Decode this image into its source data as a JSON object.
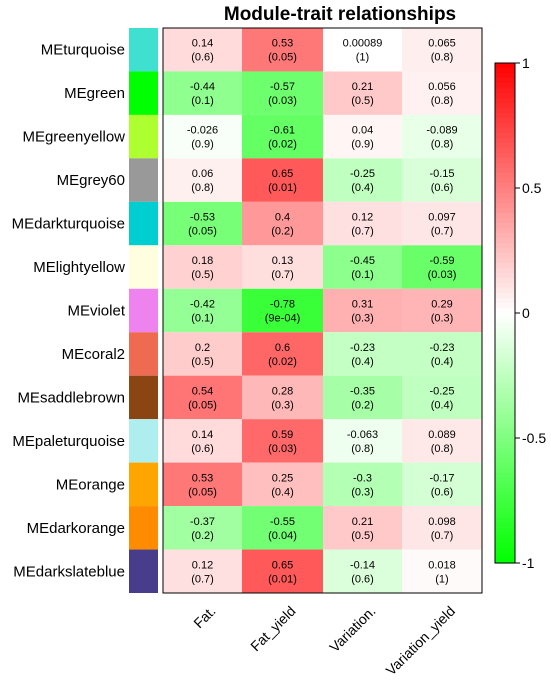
{
  "chart_data": {
    "type": "heatmap",
    "title": "Module-trait relationships",
    "rows": [
      "MEturquoise",
      "MEgreen",
      "MEgreenyellow",
      "MEgrey60",
      "MEdarkturquoise",
      "MElightyellow",
      "MEviolet",
      "MEcoral2",
      "MEsaddlebrown",
      "MEpaleturquoise",
      "MEorange",
      "MEdarkorange",
      "MEdarkslateblue"
    ],
    "row_colors": [
      "#40E0D0",
      "#00FF00",
      "#ADFF2F",
      "#999999",
      "#00CED1",
      "#FFFFE0",
      "#EE82EE",
      "#EE6A50",
      "#8B4513",
      "#AFEEEE",
      "#FFA500",
      "#FF8C00",
      "#483D8B"
    ],
    "columns": [
      "Fat.",
      "Fat_yield",
      "Variation.",
      "Variation_yield"
    ],
    "values": [
      [
        0.14,
        0.53,
        0.00089,
        0.065
      ],
      [
        -0.44,
        -0.57,
        0.21,
        0.056
      ],
      [
        -0.026,
        -0.61,
        0.04,
        -0.089
      ],
      [
        0.06,
        0.65,
        -0.25,
        -0.15
      ],
      [
        -0.53,
        0.4,
        0.12,
        0.097
      ],
      [
        0.18,
        0.13,
        -0.45,
        -0.59
      ],
      [
        -0.42,
        -0.78,
        0.31,
        0.29
      ],
      [
        0.2,
        0.6,
        -0.23,
        -0.23
      ],
      [
        0.54,
        0.28,
        -0.35,
        -0.25
      ],
      [
        0.14,
        0.59,
        -0.063,
        0.089
      ],
      [
        0.53,
        0.25,
        -0.3,
        -0.17
      ],
      [
        -0.37,
        -0.55,
        0.21,
        0.098
      ],
      [
        0.12,
        0.65,
        -0.14,
        0.018
      ]
    ],
    "value_labels": [
      [
        "0.14",
        "0.53",
        "0.00089",
        "0.065"
      ],
      [
        "-0.44",
        "-0.57",
        "0.21",
        "0.056"
      ],
      [
        "-0.026",
        "-0.61",
        "0.04",
        "-0.089"
      ],
      [
        "0.06",
        "0.65",
        "-0.25",
        "-0.15"
      ],
      [
        "-0.53",
        "0.4",
        "0.12",
        "0.097"
      ],
      [
        "0.18",
        "0.13",
        "-0.45",
        "-0.59"
      ],
      [
        "-0.42",
        "-0.78",
        "0.31",
        "0.29"
      ],
      [
        "0.2",
        "0.6",
        "-0.23",
        "-0.23"
      ],
      [
        "0.54",
        "0.28",
        "-0.35",
        "-0.25"
      ],
      [
        "0.14",
        "0.59",
        "-0.063",
        "0.089"
      ],
      [
        "0.53",
        "0.25",
        "-0.3",
        "-0.17"
      ],
      [
        "-0.37",
        "-0.55",
        "0.21",
        "0.098"
      ],
      [
        "0.12",
        "0.65",
        "-0.14",
        "0.018"
      ]
    ],
    "p_labels": [
      [
        "(0.6)",
        "(0.05)",
        "(1)",
        "(0.8)"
      ],
      [
        "(0.1)",
        "(0.03)",
        "(0.5)",
        "(0.8)"
      ],
      [
        "(0.9)",
        "(0.02)",
        "(0.9)",
        "(0.8)"
      ],
      [
        "(0.8)",
        "(0.01)",
        "(0.4)",
        "(0.6)"
      ],
      [
        "(0.05)",
        "(0.2)",
        "(0.7)",
        "(0.7)"
      ],
      [
        "(0.5)",
        "(0.7)",
        "(0.1)",
        "(0.03)"
      ],
      [
        "(0.1)",
        "(9e-04)",
        "(0.3)",
        "(0.3)"
      ],
      [
        "(0.5)",
        "(0.02)",
        "(0.4)",
        "(0.4)"
      ],
      [
        "(0.05)",
        "(0.3)",
        "(0.2)",
        "(0.4)"
      ],
      [
        "(0.6)",
        "(0.03)",
        "(0.8)",
        "(0.8)"
      ],
      [
        "(0.05)",
        "(0.4)",
        "(0.3)",
        "(0.6)"
      ],
      [
        "(0.2)",
        "(0.04)",
        "(0.5)",
        "(0.7)"
      ],
      [
        "(0.7)",
        "(0.01)",
        "(0.6)",
        "(1)"
      ]
    ],
    "colorscale": {
      "min": -1,
      "max": 1,
      "low": "#00FF00",
      "mid": "#FFFFFF",
      "high": "#FF0000"
    },
    "legend_ticks": [
      1,
      0.5,
      0,
      -0.5,
      -1
    ],
    "legend_tick_labels": [
      "1",
      "0.5",
      "0",
      "-0.5",
      "-1"
    ],
    "legend_placement": "right"
  }
}
